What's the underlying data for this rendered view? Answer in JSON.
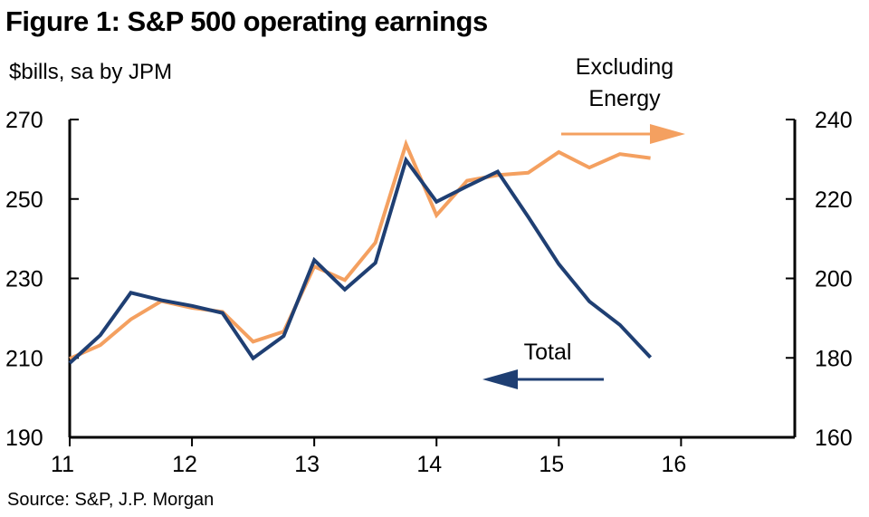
{
  "title": "Figure 1: S&P 500 operating earnings",
  "units": "$bills, sa by JPM",
  "source": "Source: S&P, J.P. Morgan",
  "chart_data": {
    "type": "line",
    "x_ticks": [
      "11",
      "12",
      "13",
      "14",
      "15",
      "16"
    ],
    "x_domain": [
      11,
      16.93
    ],
    "y_left": {
      "ticks": [
        "270",
        "250",
        "230",
        "210",
        "190"
      ],
      "lim": [
        190,
        270
      ]
    },
    "y_right": {
      "ticks": [
        "240",
        "220",
        "200",
        "180",
        "160"
      ],
      "lim": [
        160,
        240
      ]
    },
    "grid": false,
    "series": [
      {
        "name": "Total",
        "axis": "left",
        "color": "#1f3f73",
        "x": [
          11.0,
          11.25,
          11.5,
          11.75,
          12.0,
          12.25,
          12.5,
          12.75,
          13.0,
          13.25,
          13.5,
          13.75,
          14.0,
          14.25,
          14.5,
          14.75,
          15.0,
          15.25,
          15.5,
          15.75
        ],
        "values": [
          208.7,
          215.7,
          226.4,
          224.5,
          223.1,
          221.3,
          209.9,
          215.5,
          234.6,
          227.2,
          233.9,
          259.8,
          249.3,
          253.2,
          256.9,
          245.5,
          233.6,
          224.2,
          218.3,
          210.1
        ]
      },
      {
        "name": "Excluding Energy",
        "axis": "right",
        "color": "#f4a060",
        "x": [
          11.0,
          11.25,
          11.5,
          11.75,
          12.0,
          12.25,
          12.5,
          12.75,
          13.0,
          13.25,
          13.5,
          13.75,
          14.0,
          14.25,
          14.5,
          14.75,
          15.0,
          15.25,
          15.5,
          15.75
        ],
        "values": [
          179.8,
          183.2,
          189.7,
          194.3,
          192.6,
          191.6,
          184.1,
          186.6,
          203.0,
          199.6,
          209.0,
          233.8,
          215.9,
          224.6,
          226.0,
          226.6,
          231.8,
          227.9,
          231.3,
          230.3
        ]
      }
    ],
    "annotations": [
      {
        "text": "Total",
        "points_to_axis": "left"
      },
      {
        "text_lines": [
          "Excluding",
          "Energy"
        ],
        "points_to_axis": "right"
      }
    ]
  }
}
